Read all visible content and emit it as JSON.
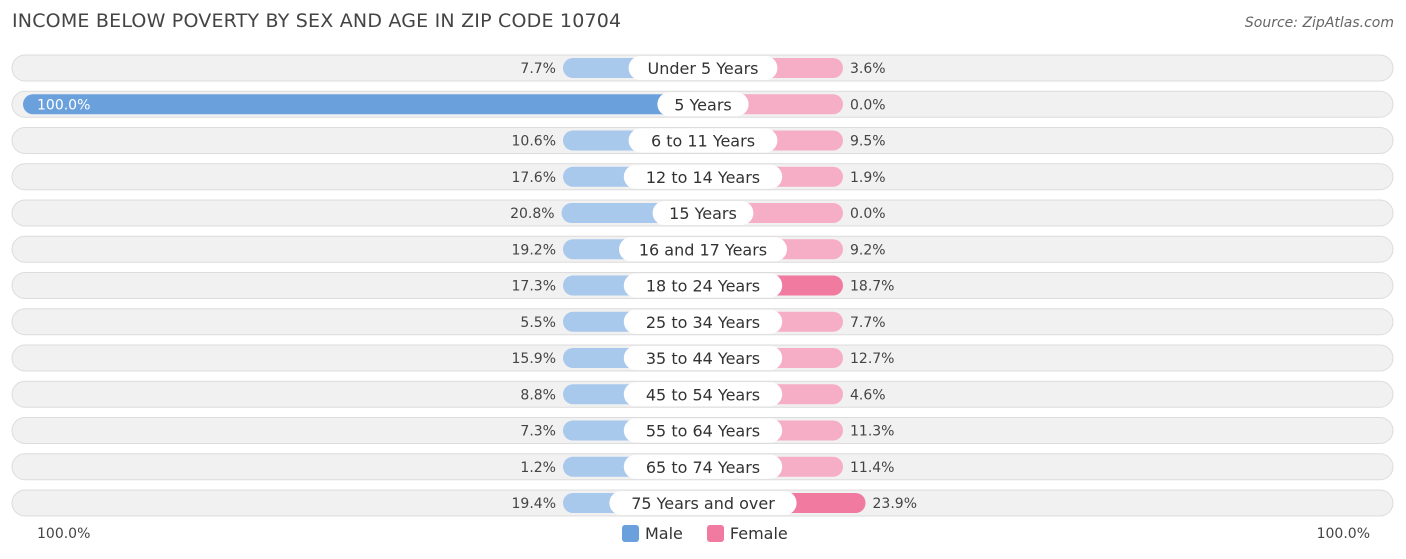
{
  "colors": {
    "male": "#6aa1dc",
    "male_light": "#a8c8ec",
    "female": "#f07aa0",
    "female_light": "#f6aec6"
  },
  "chart_data": {
    "type": "bar",
    "orientation": "horizontal-diverging",
    "title": "INCOME BELOW POVERTY BY SEX AND AGE IN ZIP CODE 10704",
    "source": "Source: ZipAtlas.com",
    "categories": [
      "Under 5 Years",
      "5 Years",
      "6 to 11 Years",
      "12 to 14 Years",
      "15 Years",
      "16 and 17 Years",
      "18 to 24 Years",
      "25 to 34 Years",
      "35 to 44 Years",
      "45 to 54 Years",
      "55 to 64 Years",
      "65 to 74 Years",
      "75 Years and over"
    ],
    "series": [
      {
        "name": "Male",
        "values": [
          7.7,
          100.0,
          10.6,
          17.6,
          20.8,
          19.2,
          17.3,
          5.5,
          15.9,
          8.8,
          7.3,
          1.2,
          19.4
        ],
        "labels": [
          "7.7%",
          "100.0%",
          "10.6%",
          "17.6%",
          "20.8%",
          "19.2%",
          "17.3%",
          "5.5%",
          "15.9%",
          "8.8%",
          "7.3%",
          "1.2%",
          "19.4%"
        ]
      },
      {
        "name": "Female",
        "values": [
          3.6,
          0.0,
          9.5,
          1.9,
          0.0,
          9.2,
          18.7,
          7.7,
          12.7,
          4.6,
          11.3,
          11.4,
          23.9
        ],
        "labels": [
          "3.6%",
          "0.0%",
          "9.5%",
          "1.9%",
          "0.0%",
          "9.2%",
          "18.7%",
          "7.7%",
          "12.7%",
          "4.6%",
          "11.3%",
          "11.4%",
          "23.9%"
        ]
      }
    ],
    "xlim": [
      -100,
      100
    ],
    "axis_left_label": "100.0%",
    "axis_right_label": "100.0%",
    "legend": [
      "Male",
      "Female"
    ],
    "legend_position": "bottom-center"
  }
}
